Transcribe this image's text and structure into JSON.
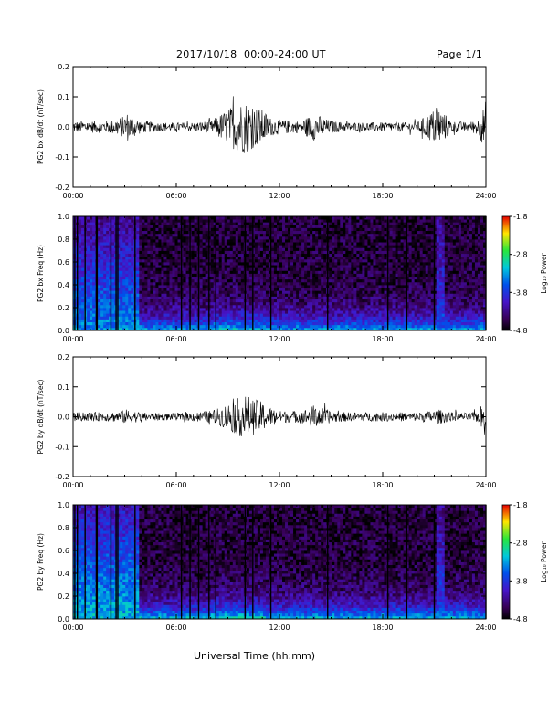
{
  "header": {
    "date_range": "2017/10/18  00:00-24:00 UT",
    "page": "Page 1/1"
  },
  "footer": {
    "xlabel": "Universal Time (hh:mm)"
  },
  "chart_data": [
    {
      "type": "line",
      "ylabel": "PG2 bx dB/dt (nT/sec)",
      "xlim": [
        "00:00",
        "24:00"
      ],
      "ylim": [
        -0.2,
        0.2
      ],
      "x_ticks": [
        "00:00",
        "06:00",
        "12:00",
        "18:00",
        "24:00"
      ],
      "y_ticks": [
        "-0.2",
        "-0.1",
        "0.0",
        "0.1",
        "0.2"
      ],
      "series": [
        {
          "color": "#000000",
          "x_hours": [
            0,
            1,
            2,
            2.9,
            3.1,
            4,
            5,
            6,
            7,
            8,
            8.5,
            9,
            9.5,
            10,
            10.5,
            11,
            11.5,
            12,
            13,
            13.5,
            14,
            15,
            16,
            17,
            18,
            19,
            20,
            20.8,
            21.2,
            22,
            23,
            23.6,
            24
          ],
          "amplitude": [
            0.02,
            0.02,
            0.02,
            0.035,
            0.05,
            0.02,
            0.015,
            0.015,
            0.015,
            0.02,
            0.04,
            0.06,
            0.08,
            0.09,
            0.07,
            0.06,
            0.03,
            0.025,
            0.02,
            0.03,
            0.045,
            0.02,
            0.015,
            0.015,
            0.015,
            0.015,
            0.015,
            0.05,
            0.07,
            0.02,
            0.015,
            0.03,
            0.09
          ]
        }
      ]
    },
    {
      "type": "heatmap",
      "ylabel": "PG2 bx Freq (Hz)",
      "xlim": [
        "00:00",
        "24:00"
      ],
      "ylim": [
        0.0,
        1.0
      ],
      "x_ticks": [
        "00:00",
        "06:00",
        "12:00",
        "18:00",
        "24:00"
      ],
      "y_ticks": [
        "0.0",
        "0.2",
        "0.4",
        "0.6",
        "0.8",
        "1.0"
      ],
      "colorbar": {
        "label": "Log₁₀ Power",
        "min": -4.8,
        "max": -1.8,
        "ticks": [
          "-1.8",
          "-2.8",
          "-3.8",
          "-4.8"
        ]
      },
      "gap_lines_hours": [
        0.1,
        0.25,
        0.7,
        1.35,
        1.4,
        2.2,
        2.5,
        2.6,
        3.6,
        6.3,
        6.8,
        7.3,
        7.9,
        8.3,
        10.0,
        10.45,
        11.5,
        14.8,
        18.3,
        19.4,
        21.0,
        24.0
      ],
      "power_log10": {
        "low_freq_floor": -3.2,
        "high_freq_floor": -4.6,
        "early_band_hours": [
          0,
          3.8
        ],
        "early_band_level": -3.4,
        "pulse_hours": [
          21.2,
          21.6
        ],
        "pulse_level": -3.7
      }
    },
    {
      "type": "line",
      "ylabel": "PG2 by dB/dt (nT/sec)",
      "xlim": [
        "00:00",
        "24:00"
      ],
      "ylim": [
        -0.2,
        0.2
      ],
      "x_ticks": [
        "00:00",
        "06:00",
        "12:00",
        "18:00",
        "24:00"
      ],
      "y_ticks": [
        "-0.2",
        "-0.1",
        "0.0",
        "0.1",
        "0.2"
      ],
      "series": [
        {
          "color": "#000000",
          "x_hours": [
            0,
            1,
            2,
            2.9,
            3.1,
            4,
            5,
            6,
            7,
            8,
            8.5,
            9,
            9.5,
            10,
            10.5,
            11,
            11.5,
            12,
            13,
            13.5,
            14,
            15,
            16,
            17,
            18,
            19,
            20,
            20.8,
            21.2,
            22,
            23,
            23.6,
            24
          ],
          "amplitude": [
            0.015,
            0.015,
            0.015,
            0.02,
            0.025,
            0.015,
            0.012,
            0.012,
            0.015,
            0.02,
            0.03,
            0.045,
            0.06,
            0.075,
            0.06,
            0.05,
            0.03,
            0.02,
            0.02,
            0.025,
            0.04,
            0.02,
            0.015,
            0.015,
            0.015,
            0.015,
            0.015,
            0.02,
            0.025,
            0.015,
            0.012,
            0.02,
            0.08
          ]
        }
      ]
    },
    {
      "type": "heatmap",
      "ylabel": "PG2 by Freq (Hz)",
      "xlim": [
        "00:00",
        "24:00"
      ],
      "ylim": [
        0.0,
        1.0
      ],
      "x_ticks": [
        "00:00",
        "06:00",
        "12:00",
        "18:00",
        "24:00"
      ],
      "y_ticks": [
        "0.0",
        "0.2",
        "0.4",
        "0.6",
        "0.8",
        "1.0"
      ],
      "colorbar": {
        "label": "Log₁₀ Power",
        "min": -4.8,
        "max": -1.8,
        "ticks": [
          "-1.8",
          "-2.8",
          "-3.8",
          "-4.8"
        ]
      },
      "gap_lines_hours": [
        0.1,
        0.25,
        0.7,
        1.35,
        1.4,
        2.2,
        2.5,
        2.6,
        3.6,
        6.3,
        6.8,
        7.3,
        7.9,
        8.3,
        10.0,
        10.45,
        11.5,
        14.8,
        18.3,
        19.4,
        21.0,
        24.0
      ],
      "power_log10": {
        "low_freq_floor": -3.1,
        "high_freq_floor": -4.6,
        "early_band_hours": [
          0,
          3.8
        ],
        "early_band_level": -3.2,
        "pulse_hours": [
          21.2,
          21.6
        ],
        "pulse_level": -3.7
      }
    }
  ]
}
